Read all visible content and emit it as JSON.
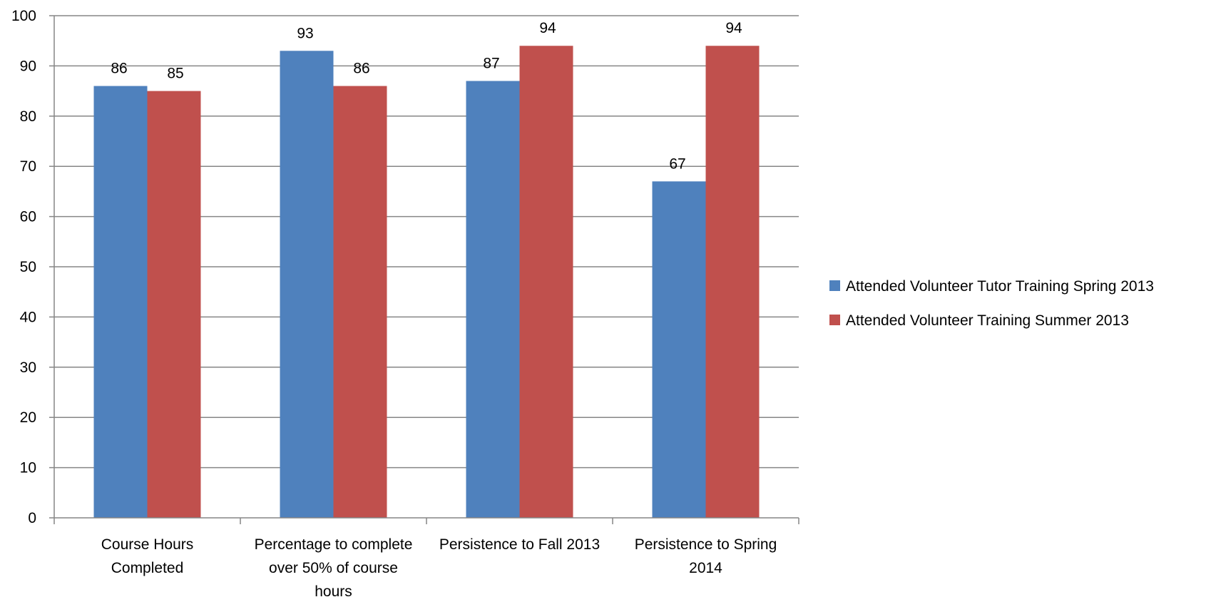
{
  "chart_data": {
    "type": "bar",
    "title": "",
    "xlabel": "",
    "ylabel": "",
    "ylim": [
      0,
      100
    ],
    "yticks": [
      0,
      10,
      20,
      30,
      40,
      50,
      60,
      70,
      80,
      90,
      100
    ],
    "grid": true,
    "legend_position": "right",
    "categories": [
      [
        "Course Hours",
        "Completed"
      ],
      [
        "Percentage to complete",
        "over 50% of course",
        "hours"
      ],
      [
        "Persistence to Fall 2013"
      ],
      [
        "Persistence to Spring",
        "2014"
      ]
    ],
    "series": [
      {
        "name": "Attended Volunteer Tutor Training Spring 2013",
        "color": "#4f81bd",
        "values": [
          86,
          93,
          87,
          67
        ]
      },
      {
        "name": "Attended Volunteer Training Summer 2013",
        "color": "#c0504d",
        "values": [
          85,
          86,
          94,
          94
        ]
      }
    ]
  }
}
